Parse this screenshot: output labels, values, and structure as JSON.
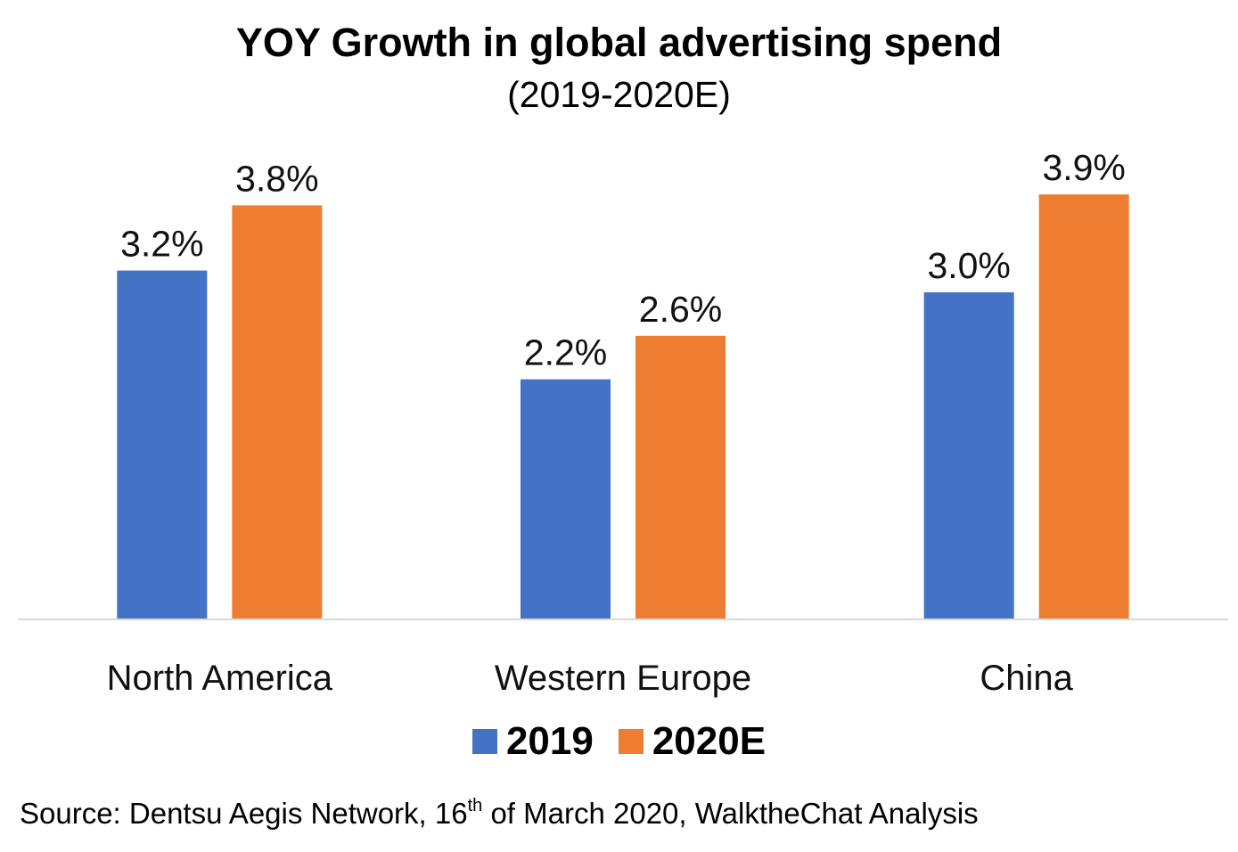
{
  "chart_data": {
    "type": "bar",
    "title": "YOY Growth in global advertising spend",
    "subtitle": "(2019-2020E)",
    "categories": [
      "North America",
      "Western Europe",
      "China"
    ],
    "series": [
      {
        "name": "2019",
        "values": [
          3.2,
          2.2,
          3.0
        ],
        "labels": [
          "3.2%",
          "2.2%",
          "3.0%"
        ],
        "color": "#4472C4"
      },
      {
        "name": "2020E",
        "values": [
          3.8,
          2.6,
          3.9
        ],
        "labels": [
          "3.8%",
          "2.6%",
          "3.9%"
        ],
        "color": "#ED7D31"
      }
    ],
    "unit": "%",
    "ylim": [
      0,
      4.2
    ],
    "grid": false,
    "legend_position": "bottom",
    "axis_line_color": "#D9D9D9"
  },
  "source": {
    "prefix": "Source: Dentsu Aegis Network, 16",
    "superscript": "th",
    "suffix": " of March 2020, WalktheChat Analysis"
  }
}
